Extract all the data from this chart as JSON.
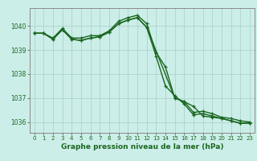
{
  "title": "Graphe pression niveau de la mer (hPa)",
  "background_color": "#cceee8",
  "grid_color": "#aad4cc",
  "line_color": "#1a6620",
  "spine_color": "#888888",
  "xlim": [
    -0.5,
    23.5
  ],
  "ylim": [
    1035.55,
    1040.75
  ],
  "yticks": [
    1036,
    1037,
    1038,
    1039,
    1040
  ],
  "xticks": [
    0,
    1,
    2,
    3,
    4,
    5,
    6,
    7,
    8,
    9,
    10,
    11,
    12,
    13,
    14,
    15,
    16,
    17,
    18,
    19,
    20,
    21,
    22,
    23
  ],
  "line1_x": [
    0,
    1,
    2,
    3,
    4,
    5,
    6,
    7,
    8,
    9,
    10,
    11,
    12,
    13,
    14,
    15,
    16,
    17,
    18,
    19,
    20,
    21,
    22,
    23
  ],
  "line1_y": [
    1039.7,
    1039.7,
    1039.5,
    1039.9,
    1039.5,
    1039.5,
    1039.6,
    1039.6,
    1039.8,
    1040.2,
    1040.35,
    1040.45,
    1040.1,
    1038.9,
    1038.3,
    1037.0,
    1036.85,
    1036.4,
    1036.45,
    1036.35,
    1036.2,
    1036.15,
    1036.05,
    1036.0
  ],
  "line2_x": [
    0,
    1,
    2,
    3,
    4,
    5,
    6,
    7,
    8,
    9,
    10,
    11,
    12,
    13,
    14,
    15,
    16,
    17,
    18,
    19,
    20,
    21,
    22,
    23
  ],
  "line2_y": [
    1039.7,
    1039.7,
    1039.45,
    1039.85,
    1039.45,
    1039.4,
    1039.5,
    1039.55,
    1039.75,
    1040.1,
    1040.25,
    1040.35,
    1039.95,
    1038.75,
    1037.5,
    1037.1,
    1036.75,
    1036.3,
    1036.35,
    1036.25,
    1036.15,
    1036.05,
    1035.95,
    1035.95
  ],
  "line3_x": [
    0,
    1,
    2,
    3,
    4,
    5,
    6,
    7,
    8,
    9,
    10,
    11,
    12,
    15,
    16,
    17,
    18,
    19,
    20,
    21,
    22,
    23
  ],
  "line3_y": [
    1039.7,
    1039.7,
    1039.45,
    1039.85,
    1039.45,
    1039.4,
    1039.5,
    1039.55,
    1039.75,
    1040.1,
    1040.25,
    1040.35,
    1039.95,
    1037.0,
    1036.85,
    1036.65,
    1036.25,
    1036.2,
    1036.15,
    1036.05,
    1035.95,
    1035.95
  ],
  "ylabel_fontsize": 5.5,
  "xlabel_fontsize": 6.5,
  "tick_fontsize": 5.0,
  "linewidth": 1.0,
  "markersize": 3.5
}
